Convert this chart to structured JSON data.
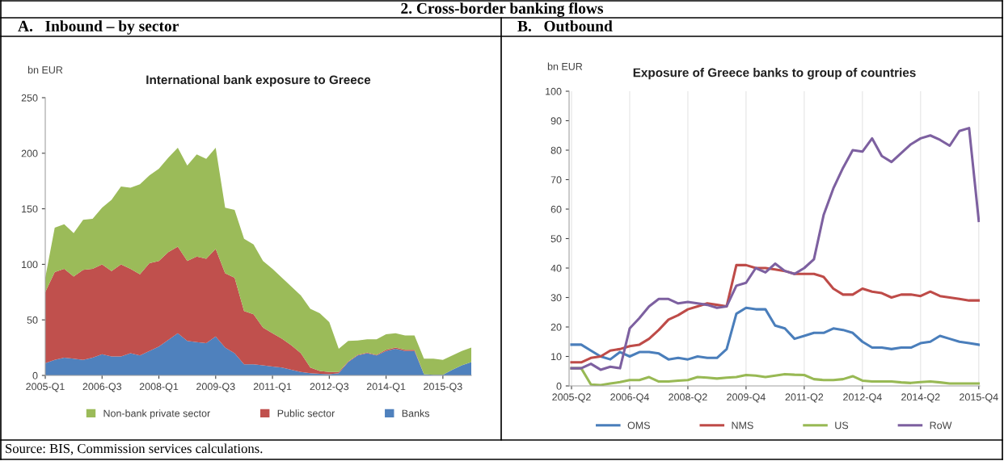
{
  "chart_data": [
    {
      "type": "area",
      "stacked": true,
      "title": "A.   Inbound – by sector",
      "subtitle": "International bank exposure to Greece",
      "ylabel": "bn EUR",
      "annotations": [
        "2. Cross-border banking flows",
        "Source: BIS, Commission services calculations."
      ],
      "categories": [
        "2005-Q1",
        null,
        null,
        null,
        null,
        null,
        "2006-Q3",
        null,
        null,
        null,
        null,
        null,
        "2008-Q1",
        null,
        null,
        null,
        null,
        null,
        "2009-Q3",
        null,
        null,
        null,
        null,
        null,
        "2011-Q1",
        null,
        null,
        null,
        null,
        null,
        "2012-Q3",
        null,
        null,
        null,
        null,
        null,
        "2014-Q1",
        null,
        null,
        null,
        null,
        null,
        "2015-Q3",
        null,
        null,
        null
      ],
      "ylim": [
        0,
        250
      ],
      "yticks": [
        0,
        50,
        100,
        150,
        200,
        250
      ],
      "legend": "bottom",
      "grid": false,
      "series": [
        {
          "name": "Banks",
          "color": "#4f81bd",
          "values": [
            11,
            14,
            16,
            15,
            14,
            16,
            19,
            17,
            17,
            20,
            18,
            22,
            26,
            32,
            38,
            31,
            30,
            29,
            35,
            25,
            20,
            10,
            10,
            9,
            8,
            7,
            5,
            3,
            2,
            1.5,
            1,
            2,
            12,
            18,
            20,
            18,
            22,
            24,
            22,
            22,
            1,
            0.5,
            0.5,
            5,
            9,
            12
          ]
        },
        {
          "name": "Public sector",
          "color": "#c0504d",
          "values": [
            64,
            79,
            80,
            74,
            81,
            80,
            81,
            77,
            83,
            76,
            73,
            79,
            77,
            79,
            78,
            72,
            77,
            76,
            79,
            67,
            68,
            48,
            45,
            34,
            30,
            26,
            22,
            17,
            5,
            2.5,
            2,
            1,
            0.5,
            0.5,
            0.5,
            0.5,
            1,
            1,
            1,
            1,
            0,
            0,
            0,
            0,
            0,
            0
          ]
        },
        {
          "name": "Non-bank private sector",
          "color": "#9bbb59",
          "values": [
            13,
            40,
            40,
            39,
            45,
            45,
            51,
            64,
            70,
            73,
            81,
            79,
            83,
            85,
            89,
            86,
            92,
            90,
            91,
            59,
            61,
            65,
            63,
            60,
            58,
            55,
            53,
            52,
            53,
            52,
            45,
            21,
            18.5,
            13,
            12,
            14,
            14,
            13,
            13,
            13,
            14,
            14.5,
            13.5,
            13,
            13,
            13
          ]
        }
      ]
    },
    {
      "type": "line",
      "title": "B.   Outbound",
      "subtitle": "Exposure of Greece banks to group of countries",
      "ylabel": "bn EUR",
      "categories": [
        "2005-Q2",
        null,
        null,
        null,
        null,
        null,
        "2006-Q4",
        null,
        null,
        null,
        null,
        null,
        "2008-Q2",
        null,
        null,
        null,
        null,
        null,
        "2009-Q4",
        null,
        null,
        null,
        null,
        null,
        "2011-Q2",
        null,
        null,
        null,
        null,
        null,
        "2012-Q4",
        null,
        null,
        null,
        null,
        null,
        "2014-Q2",
        null,
        null,
        null,
        null,
        null,
        "2015-Q4"
      ],
      "ylim": [
        0,
        100
      ],
      "yticks": [
        0,
        10,
        20,
        30,
        40,
        50,
        60,
        70,
        80,
        90,
        100
      ],
      "legend": "bottom",
      "grid": "x",
      "marker": "none",
      "line_style": "solid",
      "series": [
        {
          "name": "OMS",
          "color": "#4a7ebb",
          "values": [
            14,
            14,
            12,
            10,
            9,
            11.5,
            10,
            11.5,
            11.5,
            11,
            9,
            9.5,
            9,
            10,
            9.5,
            9.5,
            12.5,
            24.5,
            26.5,
            26,
            26,
            20.5,
            19.5,
            16,
            17,
            18,
            18,
            19.5,
            19,
            18,
            15,
            13,
            13,
            12.5,
            13,
            13,
            14.5,
            15,
            17,
            16,
            15,
            14.5,
            14
          ]
        },
        {
          "name": "NMS",
          "color": "#be4b48",
          "values": [
            8,
            8,
            9.5,
            10,
            12,
            12.5,
            13.5,
            14,
            16,
            19,
            22.5,
            24,
            26,
            27,
            28,
            27.5,
            27,
            41,
            41,
            40,
            40,
            39.5,
            39,
            38,
            38,
            38,
            37,
            33,
            31,
            31,
            33,
            32,
            31.5,
            30,
            31,
            31,
            30.5,
            32,
            30.5,
            30,
            29.5,
            29,
            29
          ]
        },
        {
          "name": "US",
          "color": "#98b954",
          "values": [
            6,
            6,
            0.5,
            0.3,
            0.8,
            1.3,
            2,
            2,
            3,
            1.5,
            1.5,
            1.8,
            2,
            3,
            2.8,
            2.5,
            2.8,
            3,
            3.7,
            3.5,
            3,
            3.5,
            4,
            3.8,
            3.7,
            2.3,
            2,
            2,
            2.3,
            3.3,
            1.8,
            1.5,
            1.5,
            1.5,
            1.2,
            1,
            1.3,
            1.5,
            1.2,
            0.8,
            0.8,
            0.8,
            0.8
          ]
        },
        {
          "name": "RoW",
          "color": "#7d60a0",
          "values": [
            6,
            6,
            7.5,
            5.5,
            6.5,
            6,
            19.5,
            23,
            27,
            29.5,
            29.5,
            28,
            28.5,
            28,
            27.5,
            26.5,
            27,
            34,
            35,
            40,
            38.5,
            41.5,
            39,
            38,
            40,
            43,
            58,
            67,
            74,
            80,
            79.5,
            84,
            78,
            76,
            79,
            82,
            84,
            85,
            83.5,
            81.5,
            86.5,
            87.5,
            56
          ]
        }
      ]
    }
  ]
}
